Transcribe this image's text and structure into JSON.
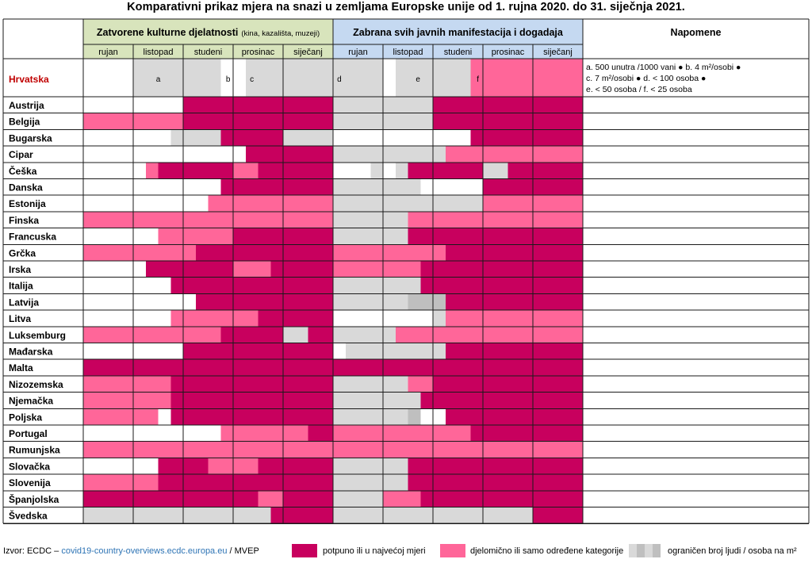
{
  "title": "Komparativni prikaz mjera na snazi u zemljama Europske unije od 1. rujna 2020. do 31. siječnja 2021.",
  "colors": {
    "full": "#C8005E",
    "partial": "#FF6699",
    "light": "#D9D9D9",
    "mid": "#BFBFBF",
    "none": "#FFFFFF",
    "grid": "#1A1A1A",
    "header_culture_bg": "#D8E4BC",
    "header_events_bg": "#C5D9F1",
    "hrvatska_color": "#C00000"
  },
  "chart_data": {
    "type": "heatmap",
    "title": "Komparativni prikaz mjera na snazi u zemljama Europske unije od 1. rujna 2020. do 31. siječnja 2021.",
    "groups": [
      {
        "label": "Zatvorene kulturne djelatnosti",
        "sublabel": "(kina, kazališta, muzeji)"
      },
      {
        "label": "Zabrana svih javnih manifestacija i dogadaja",
        "sublabel": ""
      }
    ],
    "notes_header": "Napomene",
    "months": [
      "rujan",
      "listopad",
      "studeni",
      "prosinac",
      "siječanj"
    ],
    "encoding": "Each month is split into 4 weekly quarters. F = potpuno ili u najvećoj mjeri, P = djelomično ili samo određene kategorije, L / M = ograničen broj ljudi / osoba na m², W = bez mjera",
    "rows": [
      {
        "country": "Hrvatska",
        "culture": [
          "WWWW",
          "LLLL",
          "LLLW",
          "WLLL",
          "LLLL"
        ],
        "events": [
          "LLLL",
          "WLLL",
          "LLLP",
          "PPPP",
          "PPPP"
        ],
        "marks_culture": [
          "",
          "a",
          "b",
          "c",
          ""
        ],
        "marks_events": [
          "d",
          "e",
          "f",
          "",
          ""
        ],
        "note": [
          "a. 500 unutra /1000 vani ● b. 4 m²/osobi ●",
          "c. 7 m²/osobi ● d. < 100 osoba ●",
          "e. < 50 osoba / f. < 25 osoba"
        ]
      },
      {
        "country": "Austrija",
        "culture": [
          "WWWW",
          "WWWW",
          "FFFF",
          "FFFF",
          "FFFF"
        ],
        "events": [
          "LLLL",
          "LLLL",
          "FFFF",
          "FFFF",
          "FFFF"
        ]
      },
      {
        "country": "Belgija",
        "culture": [
          "PPPP",
          "PPPP",
          "FFFF",
          "FFFF",
          "FFFF"
        ],
        "events": [
          "LLLL",
          "LLLL",
          "FFFF",
          "FFFF",
          "FFFF"
        ]
      },
      {
        "country": "Bugarska",
        "culture": [
          "WWWW",
          "WWWL",
          "LLLF",
          "FFFF",
          "LLLL"
        ],
        "events": [
          "WWWW",
          "WWWW",
          "WWWF",
          "FFFF",
          "FFFF"
        ]
      },
      {
        "country": "Cipar",
        "culture": [
          "WWWW",
          "WWWW",
          "WWWW",
          "WFFF",
          "FFFF"
        ],
        "events": [
          "LLLL",
          "LLLL",
          "LPPP",
          "PPPP",
          "PPPP"
        ]
      },
      {
        "country": "Češka",
        "culture": [
          "WWWW",
          "WPFF",
          "FFFF",
          "PPFF",
          "FFFF"
        ],
        "events": [
          "WWWL",
          "WLFF",
          "FFFF",
          "LLFF",
          "FFFF"
        ]
      },
      {
        "country": "Danska",
        "culture": [
          "WWWW",
          "WWWW",
          "WWWF",
          "FFFF",
          "FFFF"
        ],
        "events": [
          "LLLL",
          "LLLW",
          "WWWW",
          "FFFF",
          "FFFF"
        ]
      },
      {
        "country": "Estonija",
        "culture": [
          "WWWW",
          "WWWW",
          "WWPP",
          "PPPP",
          "PPPP"
        ],
        "events": [
          "LLLL",
          "LLLL",
          "LLLL",
          "PPPP",
          "PPPP"
        ]
      },
      {
        "country": "Finska",
        "culture": [
          "PPPP",
          "PPPP",
          "PPPP",
          "PPPP",
          "PPPP"
        ],
        "events": [
          "LLLL",
          "LLPP",
          "PPPP",
          "PPPP",
          "PPPP"
        ]
      },
      {
        "country": "Francuska",
        "culture": [
          "WWWW",
          "WWPP",
          "PPPP",
          "FFFF",
          "FFFF"
        ],
        "events": [
          "LLLL",
          "LLFF",
          "FFFF",
          "FFFF",
          "FFFF"
        ]
      },
      {
        "country": "Grčka",
        "culture": [
          "PPPP",
          "PPPP",
          "PFFF",
          "FFFF",
          "FFFF"
        ],
        "events": [
          "PPPP",
          "PPPP",
          "PFFF",
          "FFFF",
          "FFFF"
        ]
      },
      {
        "country": "Irska",
        "culture": [
          "WWWW",
          "WFFF",
          "FFFF",
          "PPPF",
          "FFFF"
        ],
        "events": [
          "PPPP",
          "PPPF",
          "FFFF",
          "FFFF",
          "FFFF"
        ]
      },
      {
        "country": "Italija",
        "culture": [
          "WWWW",
          "WWWF",
          "FFFF",
          "FFFF",
          "FFFF"
        ],
        "events": [
          "LLLL",
          "LLLF",
          "FFFF",
          "FFFF",
          "FFFF"
        ]
      },
      {
        "country": "Latvija",
        "culture": [
          "WWWW",
          "WWWW",
          "WFFF",
          "FFFF",
          "FFFF"
        ],
        "events": [
          "LLLL",
          "LLMM",
          "MFFF",
          "FFFF",
          "FFFF"
        ]
      },
      {
        "country": "Litva",
        "culture": [
          "WWWW",
          "WWWP",
          "PPPP",
          "PPFF",
          "FFFF"
        ],
        "events": [
          "WWWW",
          "WWWW",
          "LPPP",
          "PPPP",
          "PPPP"
        ]
      },
      {
        "country": "Luksemburg",
        "culture": [
          "PPPP",
          "PPPP",
          "PPPF",
          "FFFF",
          "LLFF"
        ],
        "events": [
          "LLLL",
          "LPPP",
          "PPPP",
          "PPPP",
          "PPPP"
        ]
      },
      {
        "country": "Mađarska",
        "culture": [
          "WWWW",
          "WWWW",
          "FFFF",
          "FFFF",
          "FFFF"
        ],
        "events": [
          "WLLL",
          "LLLL",
          "LFFF",
          "FFFF",
          "FFFF"
        ]
      },
      {
        "country": "Malta",
        "culture": [
          "FFFF",
          "FFFF",
          "FFFF",
          "FFFF",
          "FFFF"
        ],
        "events": [
          "FFFF",
          "FFFF",
          "FFFF",
          "FFFF",
          "FFFF"
        ]
      },
      {
        "country": "Nizozemska",
        "culture": [
          "PPPP",
          "PPPF",
          "FFFF",
          "FFFF",
          "FFFF"
        ],
        "events": [
          "LLLL",
          "LLPP",
          "FFFF",
          "FFFF",
          "FFFF"
        ]
      },
      {
        "country": "Njemačka",
        "culture": [
          "PPPP",
          "PPPF",
          "FFFF",
          "FFFF",
          "FFFF"
        ],
        "events": [
          "LLLL",
          "LLLF",
          "FFFF",
          "FFFF",
          "FFFF"
        ]
      },
      {
        "country": "Poljska",
        "culture": [
          "PPPP",
          "PPWF",
          "FFFF",
          "FFFF",
          "FFFF"
        ],
        "events": [
          "LLLL",
          "LLMW",
          "WFFF",
          "FFFF",
          "FFFF"
        ]
      },
      {
        "country": "Portugal",
        "culture": [
          "WWWW",
          "WWWW",
          "WWWP",
          "PPPP",
          "PPFF"
        ],
        "events": [
          "PPPP",
          "PPPP",
          "PPPF",
          "FFFF",
          "FFFF"
        ]
      },
      {
        "country": "Rumunjska",
        "culture": [
          "PPPP",
          "PPPP",
          "PPPP",
          "PPPP",
          "PPPP"
        ],
        "events": [
          "PPPP",
          "PPPP",
          "PPPP",
          "PPPP",
          "PPPP"
        ]
      },
      {
        "country": "Slovačka",
        "culture": [
          "WWWW",
          "WWFF",
          "FFPP",
          "PPFF",
          "FFFF"
        ],
        "events": [
          "LLLL",
          "LLFF",
          "FFFF",
          "FFFF",
          "FFFF"
        ]
      },
      {
        "country": "Slovenija",
        "culture": [
          "PPPP",
          "PPFF",
          "FFFF",
          "FFFF",
          "FFFF"
        ],
        "events": [
          "LLLL",
          "LLFF",
          "FFFF",
          "FFFF",
          "FFFF"
        ]
      },
      {
        "country": "Španjolska",
        "culture": [
          "FFFF",
          "FFFF",
          "FFFF",
          "FFPP",
          "FFFF"
        ],
        "events": [
          "LLLL",
          "PPPF",
          "FFFF",
          "FFFF",
          "FFFF"
        ]
      },
      {
        "country": "Švedska",
        "culture": [
          "LLLL",
          "LLLL",
          "LLLL",
          "LLLF",
          "FFFF"
        ],
        "events": [
          "LLLL",
          "LLLL",
          "LLLL",
          "LLLL",
          "FFFF"
        ]
      }
    ],
    "legend": [
      {
        "key": "F",
        "label": "potpuno ili u najvećoj mjeri"
      },
      {
        "key": "P",
        "label": "djelomično ili samo određene kategorije"
      },
      {
        "key": "L",
        "label": "ograničen broj ljudi / osoba na m²"
      }
    ]
  },
  "footer": {
    "source_prefix": "Izvor: ECDC – ",
    "source_link": "covid19-country-overviews.ecdc.europa.eu",
    "source_suffix": " / MVEP",
    "legend_full": "potpuno ili u najvećoj mjeri",
    "legend_partial": "djelomično ili samo određene kategorije",
    "legend_limited": "ograničen broj ljudi / osoba na m²"
  }
}
